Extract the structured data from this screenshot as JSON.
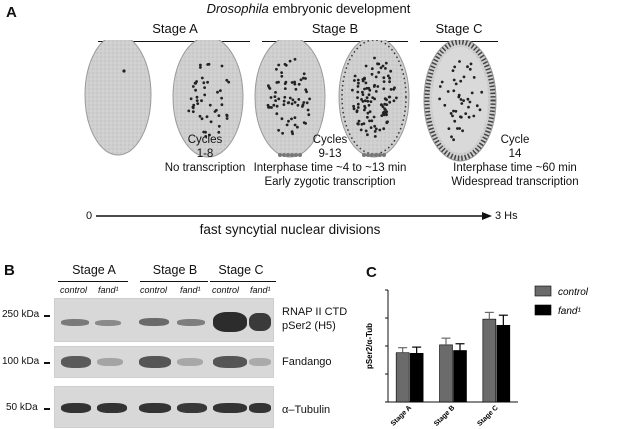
{
  "panelA": {
    "letter": "A",
    "title_italic": "Drosophila",
    "title_rest": " embryonic development",
    "stages": [
      "Stage A",
      "Stage B",
      "Stage C"
    ],
    "captions": [
      [
        "Cycles",
        "1-8",
        "No transcription"
      ],
      [
        "Cycles",
        "9-13",
        "Interphase time ~4 to ~13 min",
        "Early zygotic transcription"
      ],
      [
        "Cycle",
        "14",
        "Interphase time ~60 min",
        "Widespread transcription"
      ]
    ],
    "timeline_start": "0",
    "timeline_end": "3 Hs",
    "timeline_label": "fast syncytial nuclear divisions"
  },
  "panelB": {
    "letter": "B",
    "stages": [
      "Stage A",
      "Stage B",
      "Stage C"
    ],
    "lanes": [
      "control",
      "fand¹",
      "control",
      "fand¹",
      "control",
      "fand¹"
    ],
    "markers": [
      "250 kDa",
      "100 kDa",
      "50 kDa"
    ],
    "blots": [
      [
        "RNAP II CTD",
        "pSer2 (H5)"
      ],
      [
        "Fandango"
      ],
      [
        "α–Tubulin"
      ]
    ]
  },
  "panelC": {
    "letter": "C",
    "chart_data": {
      "type": "bar",
      "categories": [
        "Stage A",
        "Stage B",
        "Stage C"
      ],
      "series": [
        {
          "name": "control",
          "values": [
            0.88,
            1.02,
            1.48
          ],
          "errors": [
            0.09,
            0.12,
            0.12
          ],
          "color": "#6b6b6b"
        },
        {
          "name": "fand¹",
          "values": [
            0.87,
            0.92,
            1.37
          ],
          "errors": [
            0.11,
            0.12,
            0.18
          ],
          "color": "#000000"
        }
      ],
      "ylabel": "pSer2/α-Tub",
      "ylim": [
        0,
        2.0
      ],
      "grid": false,
      "legend": "top-right"
    }
  }
}
